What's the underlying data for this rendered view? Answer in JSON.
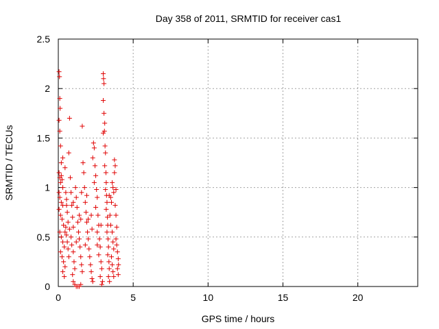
{
  "chart_data": {
    "type": "scatter",
    "title": "Day 358 of 2011, SRMTID for receiver cas1",
    "xlabel": "GPS time / hours",
    "ylabel": "SRMTID / TECUs",
    "xlim": [
      0,
      24
    ],
    "ylim": [
      0,
      2.5
    ],
    "xticks": [
      0,
      5,
      10,
      15,
      20
    ],
    "xtick_labels": [
      "0",
      "5",
      "10",
      "15",
      "20"
    ],
    "yticks": [
      0,
      0.5,
      1,
      1.5,
      2,
      2.5
    ],
    "ytick_labels": [
      "0",
      "0.5",
      "1",
      "1.5",
      "2",
      "2.5"
    ],
    "grid": true,
    "marker": "plus",
    "color": "#e00000",
    "series": [
      {
        "points": [
          [
            0.05,
            2.17
          ],
          [
            0.08,
            2.12
          ],
          [
            0.1,
            1.9
          ],
          [
            0.12,
            1.8
          ],
          [
            0.05,
            1.68
          ],
          [
            0.1,
            1.57
          ],
          [
            0.15,
            1.42
          ],
          [
            0.05,
            1.15
          ],
          [
            0.1,
            1.1
          ],
          [
            0.15,
            1.05
          ],
          [
            0.2,
            1.12
          ],
          [
            0.25,
            1.08
          ],
          [
            0.3,
            1.0
          ],
          [
            0.05,
            0.95
          ],
          [
            0.1,
            0.9
          ],
          [
            0.2,
            0.85
          ],
          [
            0.3,
            0.82
          ],
          [
            0.05,
            0.78
          ],
          [
            0.15,
            0.72
          ],
          [
            0.25,
            0.68
          ],
          [
            0.35,
            0.62
          ],
          [
            0.1,
            0.55
          ],
          [
            0.2,
            0.5
          ],
          [
            0.3,
            0.45
          ],
          [
            0.4,
            0.4
          ],
          [
            0.15,
            0.35
          ],
          [
            0.25,
            0.3
          ],
          [
            0.35,
            0.25
          ],
          [
            0.45,
            0.2
          ],
          [
            0.3,
            0.15
          ],
          [
            0.4,
            0.1
          ],
          [
            0.2,
            1.25
          ],
          [
            0.3,
            1.3
          ],
          [
            0.45,
            1.2
          ],
          [
            0.5,
            0.95
          ],
          [
            0.55,
            0.88
          ],
          [
            0.6,
            0.75
          ],
          [
            0.5,
            0.6
          ],
          [
            0.55,
            0.52
          ],
          [
            0.6,
            0.45
          ],
          [
            0.65,
            0.38
          ],
          [
            0.7,
            0.3
          ],
          [
            0.75,
            1.7
          ],
          [
            0.7,
            1.35
          ],
          [
            0.8,
            1.1
          ],
          [
            0.85,
            0.95
          ],
          [
            0.9,
            0.82
          ],
          [
            0.95,
            0.7
          ],
          [
            1.0,
            0.6
          ],
          [
            0.85,
            0.5
          ],
          [
            0.9,
            0.42
          ],
          [
            1.0,
            0.35
          ],
          [
            1.05,
            0.25
          ],
          [
            1.1,
            0.18
          ],
          [
            0.95,
            0.12
          ],
          [
            1.0,
            0.05
          ],
          [
            1.1,
            0.02
          ],
          [
            1.2,
            0.0
          ],
          [
            1.3,
            0.0
          ],
          [
            1.4,
            0.0
          ],
          [
            1.5,
            0.02
          ],
          [
            1.15,
            1.0
          ],
          [
            1.2,
            0.9
          ],
          [
            1.25,
            0.8
          ],
          [
            1.3,
            0.65
          ],
          [
            1.35,
            0.55
          ],
          [
            1.4,
            0.48
          ],
          [
            1.45,
            0.4
          ],
          [
            1.5,
            0.3
          ],
          [
            1.55,
            0.22
          ],
          [
            1.6,
            0.15
          ],
          [
            1.6,
            1.62
          ],
          [
            1.65,
            1.25
          ],
          [
            1.7,
            1.15
          ],
          [
            1.75,
            1.0
          ],
          [
            1.55,
            0.95
          ],
          [
            1.8,
            0.85
          ],
          [
            1.85,
            0.75
          ],
          [
            1.9,
            0.65
          ],
          [
            1.95,
            0.55
          ],
          [
            2.0,
            0.48
          ],
          [
            2.05,
            0.38
          ],
          [
            2.1,
            0.3
          ],
          [
            2.15,
            0.22
          ],
          [
            2.2,
            0.15
          ],
          [
            2.25,
            0.08
          ],
          [
            2.3,
            0.05
          ],
          [
            2.35,
            1.45
          ],
          [
            2.4,
            1.4
          ],
          [
            2.3,
            1.3
          ],
          [
            2.45,
            1.22
          ],
          [
            2.5,
            1.12
          ],
          [
            2.4,
            1.05
          ],
          [
            2.55,
            0.98
          ],
          [
            2.6,
            0.9
          ],
          [
            2.5,
            0.8
          ],
          [
            2.65,
            0.72
          ],
          [
            2.7,
            0.62
          ],
          [
            2.6,
            0.55
          ],
          [
            2.75,
            0.48
          ],
          [
            2.8,
            0.4
          ],
          [
            2.7,
            0.32
          ],
          [
            2.85,
            0.25
          ],
          [
            2.9,
            0.18
          ],
          [
            2.8,
            0.1
          ],
          [
            2.95,
            0.05
          ],
          [
            2.9,
            0.02
          ],
          [
            3.0,
            2.15
          ],
          [
            3.02,
            2.1
          ],
          [
            3.05,
            2.05
          ],
          [
            3.0,
            1.88
          ],
          [
            3.05,
            1.75
          ],
          [
            3.1,
            1.65
          ],
          [
            3.0,
            1.55
          ],
          [
            3.08,
            1.57
          ],
          [
            3.12,
            1.42
          ],
          [
            3.15,
            1.35
          ],
          [
            3.1,
            1.22
          ],
          [
            3.18,
            1.15
          ],
          [
            3.2,
            1.05
          ],
          [
            3.15,
            0.98
          ],
          [
            3.22,
            0.92
          ],
          [
            3.25,
            0.85
          ],
          [
            3.2,
            0.78
          ],
          [
            3.28,
            0.7
          ],
          [
            3.3,
            0.62
          ],
          [
            3.25,
            0.55
          ],
          [
            3.32,
            0.48
          ],
          [
            3.35,
            0.4
          ],
          [
            3.3,
            0.32
          ],
          [
            3.38,
            0.25
          ],
          [
            3.4,
            0.18
          ],
          [
            3.35,
            0.1
          ],
          [
            3.42,
            0.05
          ],
          [
            3.5,
            0.9
          ],
          [
            3.55,
            0.85
          ],
          [
            3.6,
            1.05
          ],
          [
            3.65,
            1.0
          ],
          [
            3.7,
            0.95
          ],
          [
            3.75,
            1.28
          ],
          [
            3.8,
            1.22
          ],
          [
            3.75,
            1.15
          ],
          [
            3.8,
            0.82
          ],
          [
            3.85,
            0.72
          ],
          [
            3.9,
            0.6
          ],
          [
            3.85,
            0.48
          ],
          [
            3.9,
            0.42
          ],
          [
            3.95,
            0.35
          ],
          [
            4.0,
            0.28
          ],
          [
            4.02,
            0.22
          ],
          [
            3.95,
            0.18
          ],
          [
            4.0,
            0.12
          ],
          [
            3.6,
            0.55
          ],
          [
            3.65,
            0.45
          ],
          [
            3.7,
            0.38
          ],
          [
            3.55,
            0.3
          ],
          [
            3.6,
            0.22
          ],
          [
            3.65,
            0.15
          ],
          [
            3.7,
            0.1
          ],
          [
            3.5,
            0.62
          ],
          [
            3.45,
            0.72
          ],
          [
            2.25,
            0.58
          ],
          [
            2.0,
            0.68
          ],
          [
            1.8,
            0.42
          ],
          [
            1.4,
            0.72
          ],
          [
            1.2,
            0.45
          ],
          [
            0.65,
            0.65
          ],
          [
            0.45,
            0.55
          ],
          [
            0.55,
            0.82
          ],
          [
            0.75,
            0.58
          ],
          [
            1.0,
            0.85
          ],
          [
            1.5,
            0.68
          ],
          [
            1.9,
            0.92
          ],
          [
            2.2,
            0.72
          ],
          [
            2.6,
            0.42
          ],
          [
            2.85,
            0.62
          ],
          [
            3.4,
            0.92
          ],
          [
            3.85,
            0.98
          ]
        ]
      }
    ]
  }
}
